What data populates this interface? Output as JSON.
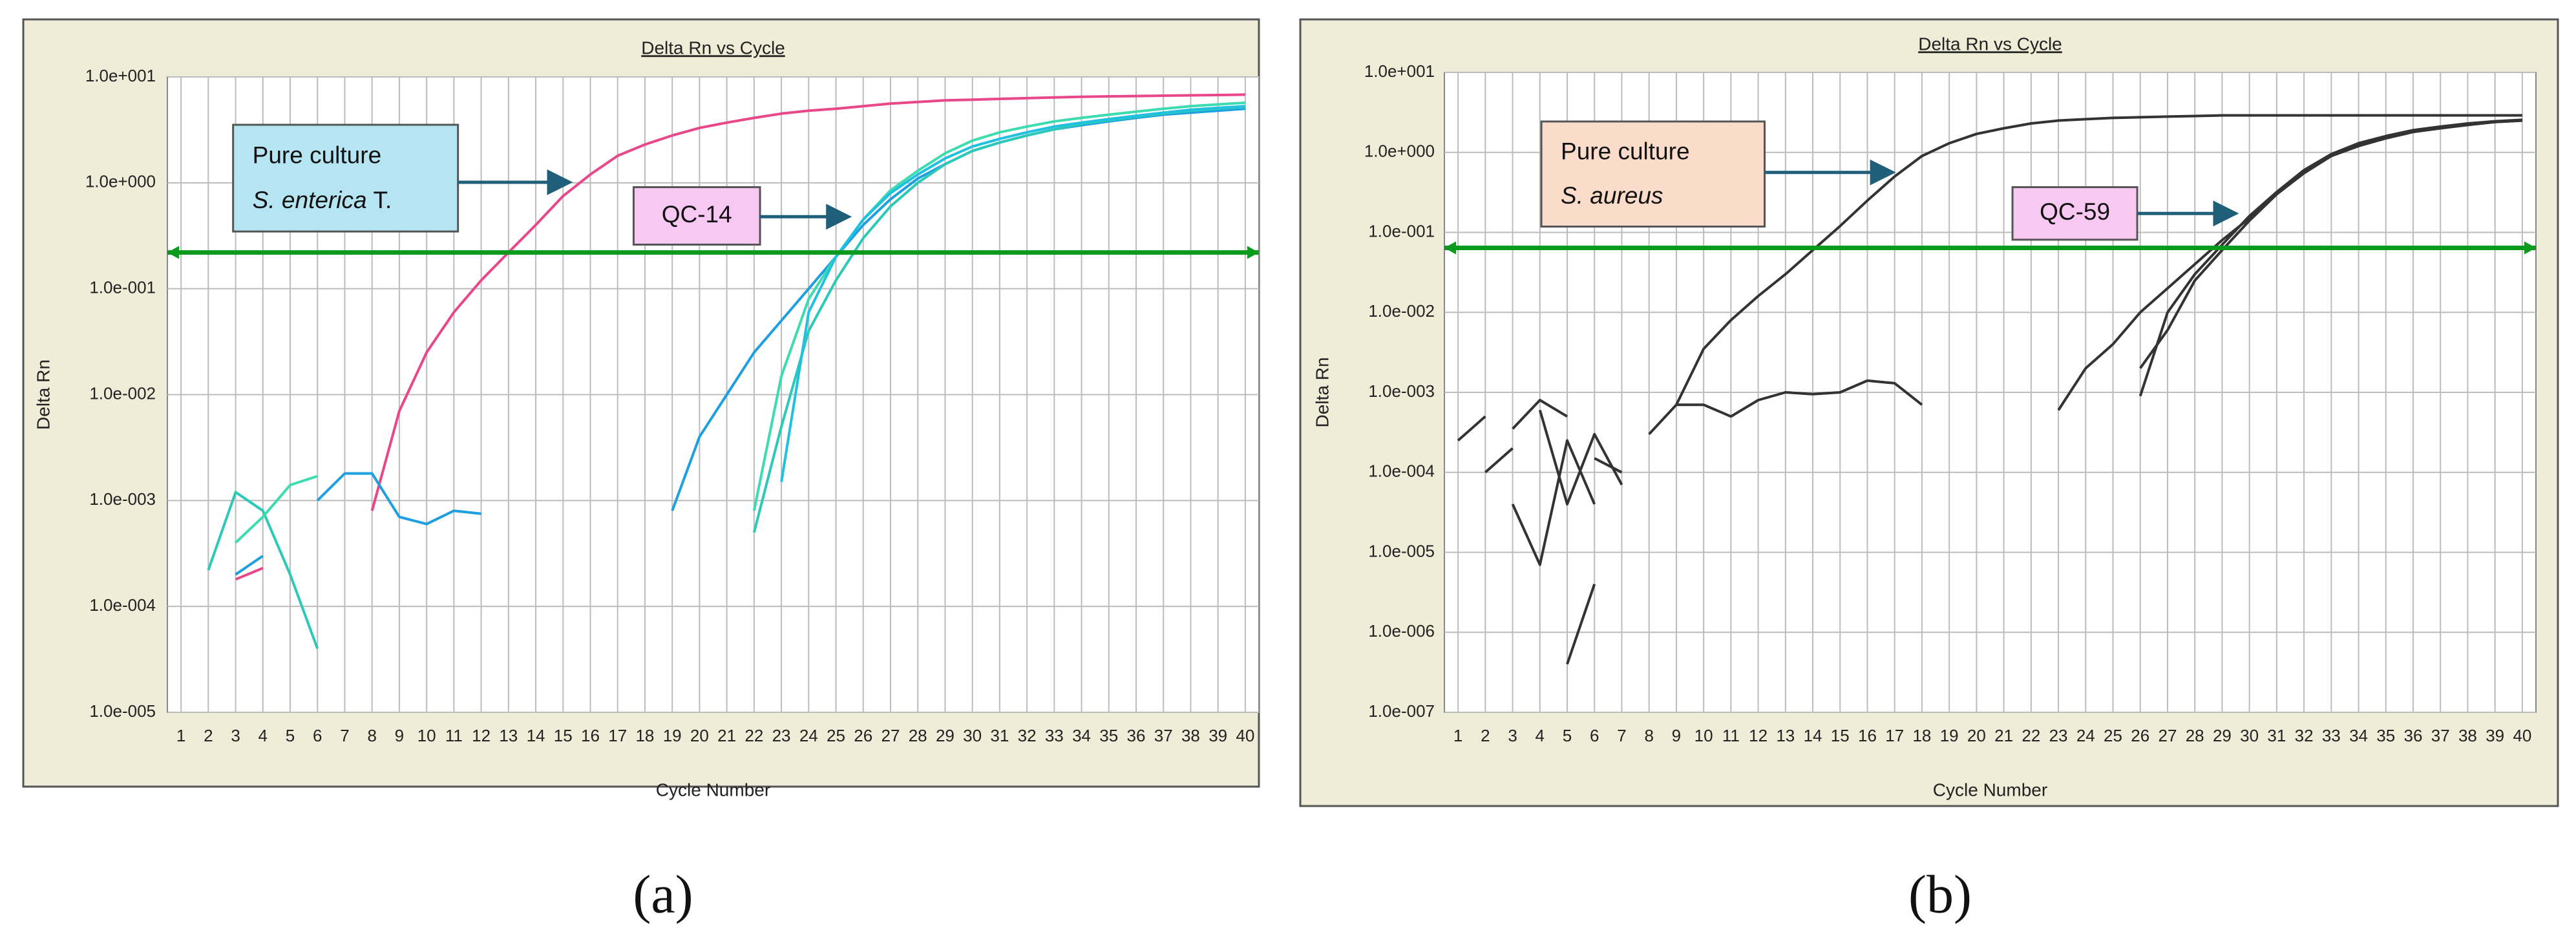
{
  "chart_data": [
    {
      "type": "line",
      "title": "Delta Rn vs Cycle",
      "xlabel": "Cycle Number",
      "ylabel": "Delta Rn",
      "panel_label": "(a)",
      "log_y": true,
      "grid": true,
      "threshold": 0.22,
      "threshold_color": "#0a9a1e",
      "annotations": [
        {
          "line1": "Pure culture",
          "line2_italic": "S. enterica",
          "line2": "T.",
          "color": "#b5e4f3"
        },
        {
          "text": "QC-14",
          "color": "#f6c8f2"
        }
      ],
      "x": [
        1,
        2,
        3,
        4,
        5,
        6,
        7,
        8,
        9,
        10,
        11,
        12,
        13,
        14,
        15,
        16,
        17,
        18,
        19,
        20,
        21,
        22,
        23,
        24,
        25,
        26,
        27,
        28,
        29,
        30,
        31,
        32,
        33,
        34,
        35,
        36,
        37,
        38,
        39,
        40
      ],
      "xlim": [
        0.5,
        40.5
      ],
      "xticks": [
        1,
        2,
        3,
        4,
        5,
        6,
        7,
        8,
        9,
        10,
        11,
        12,
        13,
        14,
        15,
        16,
        17,
        18,
        19,
        20,
        21,
        22,
        23,
        24,
        25,
        26,
        27,
        28,
        29,
        30,
        31,
        32,
        33,
        34,
        35,
        36,
        37,
        38,
        39,
        40
      ],
      "ylim": [
        1e-05,
        10
      ],
      "yticks": [
        {
          "value": 1e-05,
          "label": "1.0e-005"
        },
        {
          "value": 0.0001,
          "label": "1.0e-004"
        },
        {
          "value": 0.001,
          "label": "1.0e-003"
        },
        {
          "value": 0.01,
          "label": "1.0e-002"
        },
        {
          "value": 0.1,
          "label": "1.0e-001"
        },
        {
          "value": 1,
          "label": "1.0e+000"
        },
        {
          "value": 10,
          "label": "1.0e+001"
        }
      ],
      "series": [
        {
          "color": "#e8478a",
          "values": [
            null,
            null,
            0.00018,
            0.00023,
            null,
            null,
            null,
            0.0008,
            0.007,
            0.025,
            0.06,
            0.12,
            0.22,
            0.4,
            0.75,
            1.2,
            1.8,
            2.3,
            2.8,
            3.3,
            3.7,
            4.1,
            4.5,
            4.8,
            5.0,
            5.3,
            5.6,
            5.8,
            6.0,
            6.1,
            6.2,
            6.3,
            6.4,
            6.5,
            6.55,
            6.6,
            6.65,
            6.7,
            6.75,
            6.8
          ]
        },
        {
          "color": "#1e9fe0",
          "values": [
            null,
            null,
            0.0002,
            0.0003,
            null,
            0.001,
            0.0018,
            0.0018,
            0.0007,
            0.0006,
            0.0008,
            0.00075,
            null,
            null,
            null,
            null,
            null,
            null,
            0.0008,
            0.004,
            0.01,
            0.025,
            0.05,
            0.1,
            0.2,
            0.4,
            0.7,
            1.1,
            1.5,
            2.0,
            2.4,
            2.8,
            3.2,
            3.5,
            3.8,
            4.1,
            4.4,
            4.6,
            4.8,
            5.0
          ]
        },
        {
          "color": "#2cc9b8",
          "values": [
            null,
            0.00022,
            0.0012,
            0.0008,
            0.0002,
            4e-05,
            null,
            null,
            null,
            null,
            null,
            null,
            null,
            null,
            null,
            null,
            null,
            null,
            null,
            null,
            null,
            0.0005,
            0.005,
            0.04,
            0.12,
            0.3,
            0.6,
            1.0,
            1.5,
            2.0,
            2.4,
            2.8,
            3.2,
            3.6,
            3.9,
            4.2,
            4.5,
            4.8,
            5.0,
            5.2
          ]
        },
        {
          "color": "#3ddbb0",
          "values": [
            null,
            null,
            0.0004,
            0.0007,
            0.0014,
            0.0017,
            null,
            null,
            null,
            null,
            null,
            null,
            null,
            null,
            null,
            null,
            null,
            null,
            null,
            null,
            null,
            0.0008,
            0.015,
            0.08,
            0.2,
            0.45,
            0.85,
            1.3,
            1.9,
            2.5,
            3.0,
            3.4,
            3.8,
            4.1,
            4.4,
            4.7,
            5.0,
            5.3,
            5.5,
            5.7
          ]
        },
        {
          "color": "#20c0e0",
          "values": [
            null,
            null,
            null,
            null,
            null,
            null,
            null,
            null,
            null,
            null,
            null,
            null,
            null,
            null,
            null,
            null,
            null,
            null,
            null,
            null,
            null,
            null,
            0.0015,
            0.06,
            0.2,
            0.45,
            0.8,
            1.2,
            1.7,
            2.2,
            2.6,
            3.0,
            3.4,
            3.7,
            4.0,
            4.3,
            4.6,
            4.9,
            5.1,
            5.3
          ]
        }
      ]
    },
    {
      "type": "line",
      "title": "Delta Rn vs Cycle",
      "xlabel": "Cycle Number",
      "ylabel": "Delta Rn",
      "panel_label": "(b)",
      "log_y": true,
      "grid": true,
      "threshold": 0.064,
      "threshold_color": "#0a9a1e",
      "annotations": [
        {
          "line1": "Pure culture",
          "line2_italic": "S. aureus",
          "color": "#fbdccb"
        },
        {
          "text": "QC-59",
          "color": "#f6c8f2"
        }
      ],
      "x": [
        1,
        2,
        3,
        4,
        5,
        6,
        7,
        8,
        9,
        10,
        11,
        12,
        13,
        14,
        15,
        16,
        17,
        18,
        19,
        20,
        21,
        22,
        23,
        24,
        25,
        26,
        27,
        28,
        29,
        30,
        31,
        32,
        33,
        34,
        35,
        36,
        37,
        38,
        39,
        40
      ],
      "xlim": [
        0.5,
        40.5
      ],
      "xticks": [
        1,
        2,
        3,
        4,
        5,
        6,
        7,
        8,
        9,
        10,
        11,
        12,
        13,
        14,
        15,
        16,
        17,
        18,
        19,
        20,
        21,
        22,
        23,
        24,
        25,
        26,
        27,
        28,
        29,
        30,
        31,
        32,
        33,
        34,
        35,
        36,
        37,
        38,
        39,
        40
      ],
      "ylim": [
        1e-07,
        10
      ],
      "yticks": [
        {
          "value": 1e-07,
          "label": "1.0e-007"
        },
        {
          "value": 1e-06,
          "label": "1.0e-006"
        },
        {
          "value": 1e-05,
          "label": "1.0e-005"
        },
        {
          "value": 0.0001,
          "label": "1.0e-004"
        },
        {
          "value": 0.001,
          "label": "1.0e-003"
        },
        {
          "value": 0.01,
          "label": "1.0e-002"
        },
        {
          "value": 0.1,
          "label": "1.0e-001"
        },
        {
          "value": 1,
          "label": "1.0e+000"
        },
        {
          "value": 10,
          "label": "1.0e+001"
        }
      ],
      "series": [
        {
          "color": "#333333",
          "values": [
            null,
            null,
            null,
            null,
            null,
            null,
            null,
            0.0003,
            0.0007,
            0.0035,
            0.008,
            0.016,
            0.03,
            0.06,
            0.12,
            0.25,
            0.5,
            0.9,
            1.3,
            1.7,
            2.0,
            2.3,
            2.5,
            2.6,
            2.7,
            2.75,
            2.8,
            2.85,
            2.9,
            2.9,
            2.9,
            2.9,
            2.9,
            2.9,
            2.9,
            2.9,
            2.9,
            2.9,
            2.9,
            2.9
          ]
        },
        {
          "color": "#333333",
          "values": [
            0.00025,
            0.0005,
            null,
            null,
            null,
            null,
            null,
            null,
            0.0007,
            0.0007,
            0.0005,
            0.0008,
            0.001,
            0.00095,
            0.001,
            0.0014,
            0.0013,
            0.0007,
            null,
            null,
            null,
            null,
            null,
            null,
            null,
            null,
            null,
            null,
            null,
            null,
            null,
            null,
            null,
            null,
            null,
            null,
            null,
            null,
            null,
            null
          ]
        },
        {
          "color": "#333333",
          "values": [
            null,
            0.0001,
            0.0002,
            null,
            null,
            null,
            null,
            null,
            null,
            null,
            null,
            null,
            null,
            null,
            null,
            null,
            null,
            null,
            null,
            null,
            null,
            null,
            0.0006,
            0.002,
            0.004,
            0.01,
            0.02,
            0.04,
            0.08,
            0.15,
            0.3,
            0.55,
            0.9,
            1.2,
            1.5,
            1.8,
            2.0,
            2.2,
            2.4,
            2.5
          ]
        },
        {
          "color": "#333333",
          "values": [
            null,
            null,
            0.00035,
            0.0008,
            0.0005,
            null,
            null,
            null,
            null,
            null,
            null,
            null,
            null,
            null,
            null,
            null,
            null,
            null,
            null,
            null,
            null,
            null,
            null,
            null,
            null,
            0.0009,
            0.01,
            0.03,
            0.07,
            0.16,
            0.32,
            0.6,
            0.95,
            1.3,
            1.6,
            1.9,
            2.1,
            2.3,
            2.45,
            2.55
          ]
        },
        {
          "color": "#333333",
          "values": [
            null,
            null,
            4e-05,
            7e-06,
            0.00025,
            4e-05,
            null,
            null,
            null,
            null,
            null,
            null,
            null,
            null,
            null,
            null,
            null,
            null,
            null,
            null,
            null,
            null,
            null,
            null,
            null,
            0.002,
            0.006,
            0.025,
            0.06,
            0.14,
            0.3,
            0.58,
            0.92,
            1.25,
            1.55,
            1.85,
            2.05,
            2.25,
            2.4,
            2.5
          ]
        },
        {
          "color": "#333333",
          "values": [
            null,
            null,
            null,
            0.0006,
            4e-05,
            0.0003,
            7e-05,
            null,
            null,
            null,
            null,
            null,
            null,
            null,
            null,
            null,
            null,
            null,
            null,
            null,
            null,
            null,
            null,
            null,
            null,
            null,
            null,
            null,
            null,
            null,
            null,
            null,
            null,
            null,
            null,
            null,
            null,
            null,
            null,
            null
          ]
        },
        {
          "color": "#333333",
          "values": [
            null,
            null,
            null,
            null,
            4e-07,
            4e-06,
            null,
            null,
            null,
            null,
            null,
            null,
            null,
            null,
            null,
            null,
            null,
            null,
            null,
            null,
            null,
            null,
            null,
            null,
            null,
            null,
            null,
            null,
            null,
            null,
            null,
            null,
            null,
            null,
            null,
            null,
            null,
            null,
            null,
            null
          ]
        },
        {
          "color": "#333333",
          "values": [
            null,
            null,
            null,
            null,
            null,
            0.00015,
            0.0001,
            null,
            null,
            null,
            null,
            null,
            null,
            null,
            null,
            null,
            null,
            null,
            null,
            null,
            null,
            null,
            null,
            null,
            null,
            null,
            null,
            null,
            null,
            null,
            null,
            null,
            null,
            null,
            null,
            null,
            null,
            null,
            null,
            null
          ]
        }
      ]
    }
  ]
}
